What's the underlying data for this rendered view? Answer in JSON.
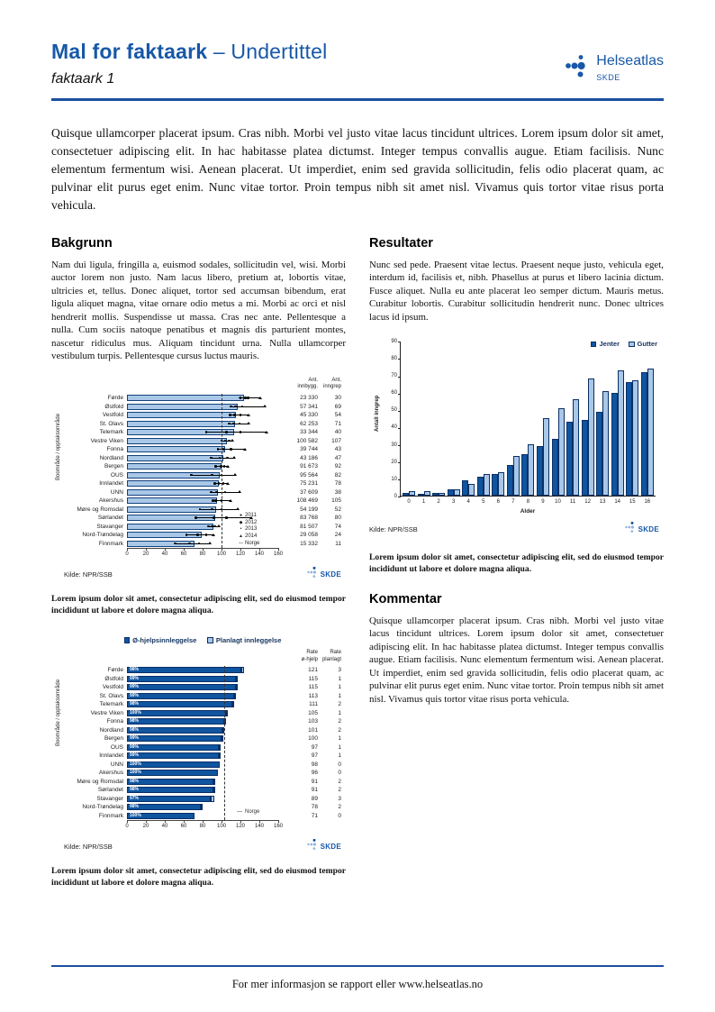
{
  "header": {
    "title": "Mal for faktaark",
    "subtitle": "– Undertittel",
    "doc_label": "faktaark 1",
    "logo_name": "Helseatlas",
    "logo_org": "SKDE"
  },
  "intro": "Quisque ullamcorper placerat ipsum. Cras nibh. Morbi vel justo vitae lacus tincidunt ultrices. Lorem ipsum dolor sit amet, consectetuer adipiscing elit. In hac habitasse platea dictumst. Integer tempus convallis augue. Etiam facilisis. Nunc elementum fermentum wisi. Aenean placerat. Ut imperdiet, enim sed gravida sollicitudin, felis odio placerat quam, ac pulvinar elit purus eget enim. Nunc vitae tortor. Proin tempus nibh sit amet nisl. Vivamus quis tortor vitae risus porta vehicula.",
  "sections": {
    "bakgrunn": {
      "heading": "Bakgrunn",
      "body": "Nam dui ligula, fringilla a, euismod sodales, sollicitudin vel, wisi. Morbi auctor lorem non justo. Nam lacus libero, pretium at, lobortis vitae, ultricies et, tellus. Donec aliquet, tortor sed accumsan bibendum, erat ligula aliquet magna, vitae ornare odio metus a mi. Morbi ac orci et nisl hendrerit mollis. Suspendisse ut massa. Cras nec ante. Pellentesque a nulla. Cum sociis natoque penatibus et magnis dis parturient montes, nascetur ridiculus mus. Aliquam tincidunt urna. Nulla ullamcorper vestibulum turpis. Pellentesque cursus luctus mauris."
    },
    "resultater": {
      "heading": "Resultater",
      "body": "Nunc sed pede. Praesent vitae lectus. Praesent neque justo, vehicula eget, interdum id, facilisis et, nibh. Phasellus at purus et libero lacinia dictum. Fusce aliquet. Nulla eu ante placerat leo semper dictum. Mauris metus. Curabitur lobortis. Curabitur sollicitudin hendrerit nunc. Donec ultrices lacus id ipsum."
    },
    "kommentar": {
      "heading": "Kommentar",
      "body": "Quisque ullamcorper placerat ipsum. Cras nibh. Morbi vel justo vitae lacus tincidunt ultrices. Lorem ipsum dolor sit amet, consectetuer adipiscing elit. In hac habitasse platea dictumst. Integer tempus convallis augue. Etiam facilisis. Nunc elementum fermentum wisi. Aenean placerat. Ut imperdiet, enim sed gravida sollicitudin, felis odio placerat quam, ac pulvinar elit purus eget enim. Nunc vitae tortor. Proin tempus nibh sit amet nisl. Vivamus quis tortor vitae risus porta vehicula."
    }
  },
  "captions": [
    "Lorem ipsum dolor sit amet, consectetur adipiscing elit, sed do eiusmod tempor incididunt ut labore et dolore magna aliqua.",
    "Lorem ipsum dolor sit amet, consectetur adipiscing elit, sed do eiusmod tempor incididunt ut labore et dolore magna aliqua.",
    "Lorem ipsum dolor sit amet, consectetur adipiscing elit, sed do eiusmod tempor incididunt ut labore et dolore magna aliqua."
  ],
  "footer": {
    "text": "For mer informasjon se rapport eller www.helseatlas.no"
  },
  "colors": {
    "brand_blue": "#1758a8",
    "rule_blue": "#1b4fa0",
    "bar_dark": "#0f55a0",
    "bar_light": "#a9c7e7",
    "bar_border": "#0a3066"
  },
  "chart_data": [
    {
      "id": "chart1",
      "type": "bar",
      "orientation": "horizontal",
      "title": "",
      "xlabel": "",
      "ylabel": "Boområde / opptaksområde",
      "xlim": [
        0,
        160
      ],
      "xticks": [
        0,
        20,
        40,
        60,
        80,
        100,
        120,
        140,
        160
      ],
      "reference_line": {
        "label": "Norge",
        "value": 100,
        "style": "dashed"
      },
      "col_headers": {
        "innbygg": "Ant.\ninnbygg.",
        "inngrep": "Ant.\ninngrep"
      },
      "legend": [
        {
          "label": "2011",
          "marker": "●"
        },
        {
          "label": "2012",
          "marker": "◆"
        },
        {
          "label": "2013",
          "marker": "•"
        },
        {
          "label": "2014",
          "marker": "▲"
        },
        {
          "label": "Norge",
          "marker": "—"
        }
      ],
      "source": "Kilde: NPR/SSB",
      "rows": [
        {
          "label": "Førde",
          "rate": 124,
          "range": [
            118,
            141
          ],
          "years": [
            120,
            125,
            128,
            140
          ],
          "innbygg": "23 330",
          "inngrep": "30"
        },
        {
          "label": "Østfold",
          "rate": 117,
          "range": [
            109,
            146
          ],
          "years": [
            110,
            115,
            122,
            145
          ],
          "innbygg": "57 341",
          "inngrep": "69"
        },
        {
          "label": "Vestfold",
          "rate": 115,
          "range": [
            108,
            130
          ],
          "years": [
            109,
            114,
            120,
            128
          ],
          "innbygg": "45 330",
          "inngrep": "54"
        },
        {
          "label": "St. Olavs",
          "rate": 114,
          "range": [
            107,
            129
          ],
          "years": [
            108,
            113,
            119,
            128
          ],
          "innbygg": "62 253",
          "inngrep": "71"
        },
        {
          "label": "Telemark",
          "rate": 113,
          "range": [
            83,
            148
          ],
          "years": [
            84,
            105,
            120,
            147
          ],
          "innbygg": "33 344",
          "inngrep": "40"
        },
        {
          "label": "Vestre Viken",
          "rate": 106,
          "range": [
            100,
            112
          ],
          "years": [
            100,
            104,
            108,
            111
          ],
          "innbygg": "100 582",
          "inngrep": "107"
        },
        {
          "label": "Fonna",
          "rate": 104,
          "range": [
            95,
            125
          ],
          "years": [
            96,
            102,
            110,
            124
          ],
          "innbygg": "39 744",
          "inngrep": "43"
        },
        {
          "label": "Nordland",
          "rate": 102,
          "range": [
            88,
            114
          ],
          "years": [
            89,
            98,
            106,
            113
          ],
          "innbygg": "43 186",
          "inngrep": "47"
        },
        {
          "label": "Bergen",
          "rate": 100,
          "range": [
            94,
            107
          ],
          "years": [
            94,
            99,
            103,
            106
          ],
          "innbygg": "91 673",
          "inngrep": "92"
        },
        {
          "label": "OUS",
          "rate": 98,
          "range": [
            67,
            115
          ],
          "years": [
            68,
            90,
            100,
            114
          ],
          "innbygg": "95 564",
          "inngrep": "82"
        },
        {
          "label": "Innlandet",
          "rate": 97,
          "range": [
            92,
            107
          ],
          "years": [
            93,
            97,
            102,
            106
          ],
          "innbygg": "75 231",
          "inngrep": "78"
        },
        {
          "label": "UNN",
          "rate": 96,
          "range": [
            88,
            119
          ],
          "years": [
            89,
            95,
            104,
            118
          ],
          "innbygg": "37 609",
          "inngrep": "38"
        },
        {
          "label": "Akershus",
          "rate": 95,
          "range": [
            90,
            110
          ],
          "years": [
            91,
            94,
            100,
            109
          ],
          "innbygg": "108 469",
          "inngrep": "105"
        },
        {
          "label": "Møre og Romsdal",
          "rate": 94,
          "range": [
            76,
            117
          ],
          "years": [
            77,
            90,
            100,
            116
          ],
          "innbygg": "54 199",
          "inngrep": "52"
        },
        {
          "label": "Sørlandet",
          "rate": 93,
          "range": [
            72,
            132
          ],
          "years": [
            73,
            92,
            105,
            131
          ],
          "innbygg": "83 768",
          "inngrep": "80"
        },
        {
          "label": "Stavanger",
          "rate": 91,
          "range": [
            86,
            97
          ],
          "years": [
            86,
            90,
            93,
            96
          ],
          "innbygg": "81 507",
          "inngrep": "74"
        },
        {
          "label": "Nord-Trøndelag",
          "rate": 79,
          "range": [
            62,
            92
          ],
          "years": [
            63,
            75,
            84,
            91
          ],
          "innbygg": "29 058",
          "inngrep": "24"
        },
        {
          "label": "Finnmark",
          "rate": 71,
          "range": [
            50,
            88
          ],
          "years": [
            51,
            66,
            76,
            87
          ],
          "innbygg": "15 332",
          "inngrep": "11"
        }
      ]
    },
    {
      "id": "chart2",
      "type": "bar",
      "orientation": "horizontal",
      "stacked": true,
      "title": "",
      "xlabel": "",
      "ylabel": "Boområde / opptaksområde",
      "xlim": [
        0,
        160
      ],
      "xticks": [
        0,
        20,
        40,
        60,
        80,
        100,
        120,
        140,
        160
      ],
      "reference_line": {
        "label": "Norge",
        "value": 103,
        "style": "dashed"
      },
      "legend": [
        {
          "label": "Ø-hjelpsinnleggelse",
          "color": "#0f55a0"
        },
        {
          "label": "Planlagt innleggelse",
          "color": "#a9c7e7"
        }
      ],
      "col_headers": {
        "ehjelp": "Rate\nø-hjelp",
        "planlagt": "Rate\nplanlagt"
      },
      "source": "Kilde: NPR/SSB",
      "rows": [
        {
          "label": "Førde",
          "pct": "98%",
          "rate_ehjelp": 121,
          "rate_planlagt": 3
        },
        {
          "label": "Østfold",
          "pct": "99%",
          "rate_ehjelp": 115,
          "rate_planlagt": 1
        },
        {
          "label": "Vestfold",
          "pct": "99%",
          "rate_ehjelp": 115,
          "rate_planlagt": 1
        },
        {
          "label": "St. Olavs",
          "pct": "99%",
          "rate_ehjelp": 113,
          "rate_planlagt": 1
        },
        {
          "label": "Telemark",
          "pct": "98%",
          "rate_ehjelp": 111,
          "rate_planlagt": 2
        },
        {
          "label": "Vestre Viken",
          "pct": "100%",
          "rate_ehjelp": 105,
          "rate_planlagt": 1
        },
        {
          "label": "Fonna",
          "pct": "98%",
          "rate_ehjelp": 103,
          "rate_planlagt": 2
        },
        {
          "label": "Nordland",
          "pct": "98%",
          "rate_ehjelp": 101,
          "rate_planlagt": 2
        },
        {
          "label": "Bergen",
          "pct": "99%",
          "rate_ehjelp": 100,
          "rate_planlagt": 1
        },
        {
          "label": "OUS",
          "pct": "99%",
          "rate_ehjelp": 97,
          "rate_planlagt": 1
        },
        {
          "label": "Innlandet",
          "pct": "99%",
          "rate_ehjelp": 97,
          "rate_planlagt": 1
        },
        {
          "label": "UNN",
          "pct": "100%",
          "rate_ehjelp": 98,
          "rate_planlagt": 0
        },
        {
          "label": "Akershus",
          "pct": "100%",
          "rate_ehjelp": 96,
          "rate_planlagt": 0
        },
        {
          "label": "Møre og Romsdal",
          "pct": "98%",
          "rate_ehjelp": 91,
          "rate_planlagt": 2
        },
        {
          "label": "Sørlandet",
          "pct": "98%",
          "rate_ehjelp": 91,
          "rate_planlagt": 2
        },
        {
          "label": "Stavanger",
          "pct": "97%",
          "rate_ehjelp": 89,
          "rate_planlagt": 3
        },
        {
          "label": "Nord-Trøndelag",
          "pct": "98%",
          "rate_ehjelp": 78,
          "rate_planlagt": 2
        },
        {
          "label": "Finnmark",
          "pct": "100%",
          "rate_ehjelp": 71,
          "rate_planlagt": 0
        }
      ]
    },
    {
      "id": "chart3",
      "type": "bar",
      "grouped": true,
      "title": "",
      "xlabel": "Alder",
      "ylabel": "Antall inngrep",
      "ylim": [
        0,
        90
      ],
      "yticks": [
        0,
        10,
        20,
        30,
        40,
        50,
        60,
        70,
        80,
        90
      ],
      "categories": [
        "0",
        "1",
        "2",
        "3",
        "4",
        "5",
        "6",
        "7",
        "8",
        "9",
        "10",
        "11",
        "12",
        "13",
        "14",
        "15",
        "16"
      ],
      "series": [
        {
          "name": "Jenter",
          "color": "#0f55a0",
          "values": [
            2,
            1,
            2,
            4,
            9,
            11,
            13,
            18,
            24,
            29,
            33,
            43,
            44,
            49,
            60,
            66,
            72
          ]
        },
        {
          "name": "Gutter",
          "color": "#a9c7e7",
          "values": [
            3,
            3,
            2,
            4,
            7,
            13,
            14,
            23,
            30,
            45,
            51,
            56,
            68,
            61,
            73,
            67,
            74
          ]
        }
      ],
      "legend_position": "top-right",
      "source": "Kilde: NPR/SSB"
    }
  ]
}
